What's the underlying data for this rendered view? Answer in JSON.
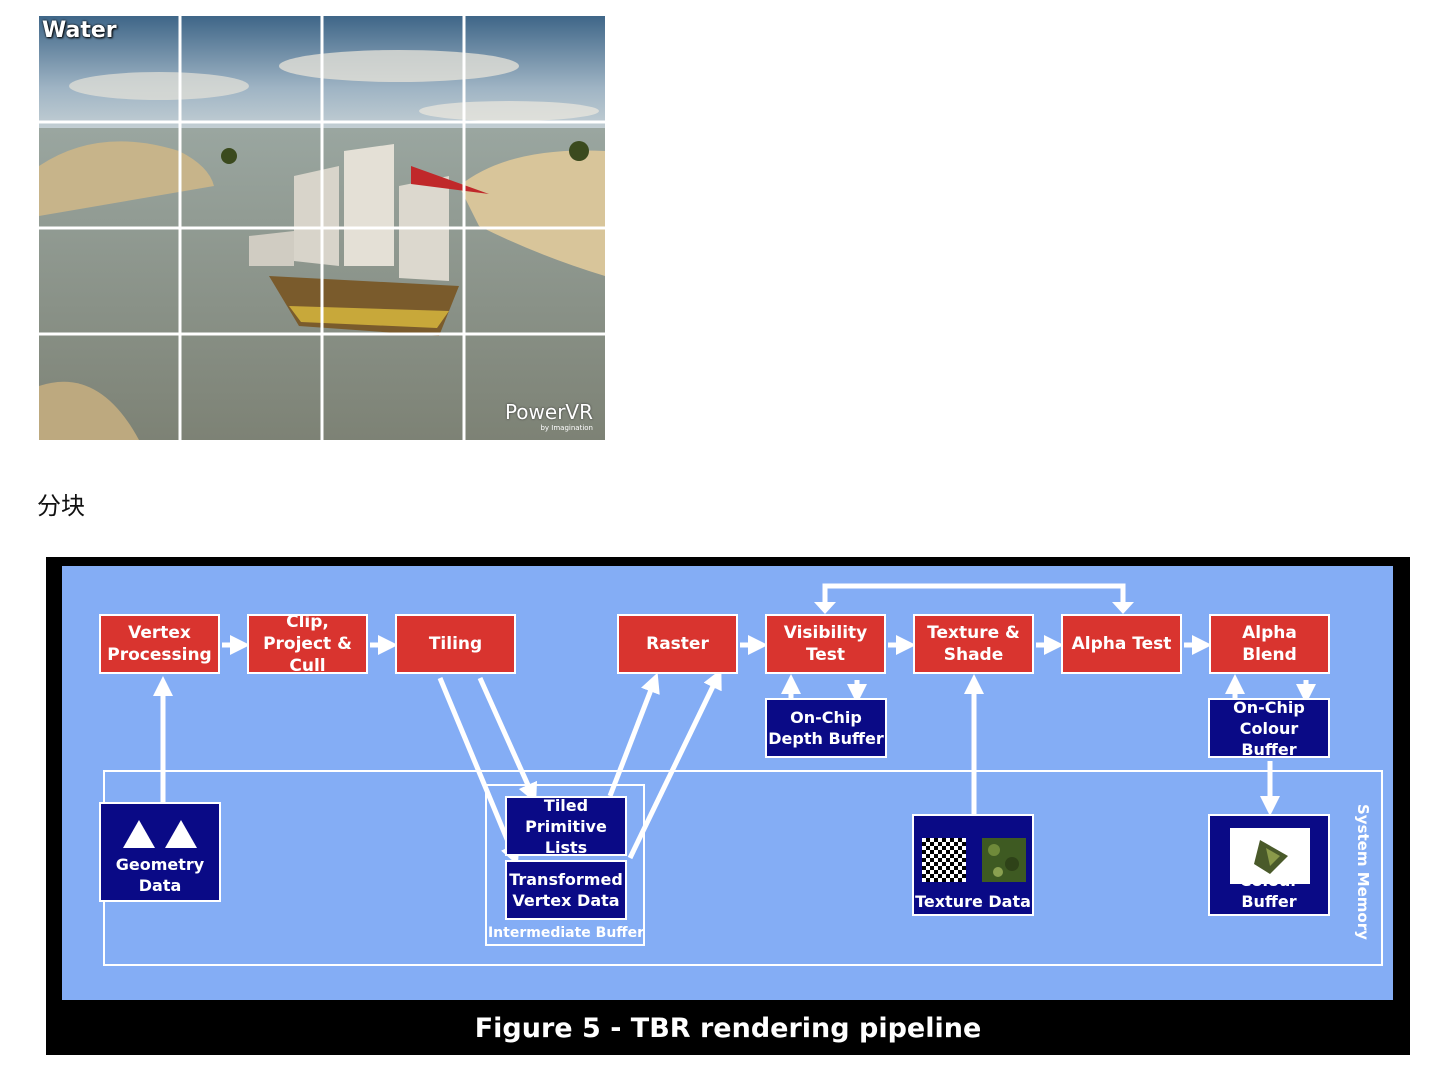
{
  "scene": {
    "label": "Water",
    "brand": "PowerVR",
    "brand_sub": "by Imagination"
  },
  "caption": "分块",
  "diagram": {
    "stages": {
      "vertex_processing": "Vertex Processing",
      "clip_project_cull": "Clip, Project & Cull",
      "tiling": "Tiling",
      "raster": "Raster",
      "visibility_test": "Visibility Test",
      "texture_shade": "Texture & Shade",
      "alpha_test": "Alpha Test",
      "alpha_blend": "Alpha Blend"
    },
    "stores": {
      "depth_buffer": "On-Chip Depth Buffer",
      "colour_buffer_onchip": "On-Chip Colour Buffer",
      "geometry_data": "Geometry Data",
      "tiled_primitive_lists": "Tiled Primitive Lists",
      "transformed_vertex_data": "Transformed Vertex Data",
      "texture_data": "Texture Data",
      "colour_buffer": "Colour Buffer"
    },
    "regions": {
      "intermediate_buffer": "Intermediate Buffer",
      "system_memory": "System Memory"
    },
    "figure_caption": "Figure 5 - TBR rendering pipeline",
    "colors": {
      "stage": "#d9342f",
      "store": "#0a0a86",
      "panel": "#84adf5"
    }
  }
}
